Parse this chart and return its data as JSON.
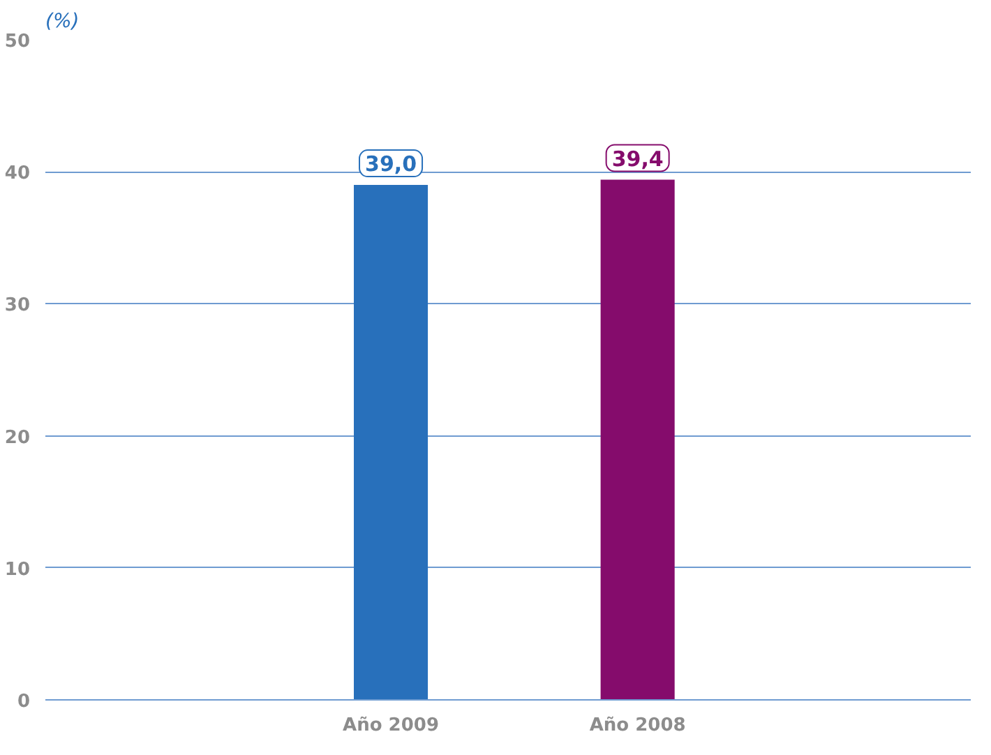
{
  "chart_data": {
    "type": "bar",
    "ylabel": "(%)",
    "categories": [
      "Año 2009",
      "Año 2008"
    ],
    "values": [
      39.0,
      39.4
    ],
    "colors": [
      "#2870bb",
      "#850c6c"
    ],
    "value_labels": [
      "39,0",
      "39,4"
    ],
    "ylim": [
      0,
      50
    ],
    "yticks": [
      0,
      10,
      20,
      30,
      40,
      50
    ],
    "grid": "y"
  }
}
